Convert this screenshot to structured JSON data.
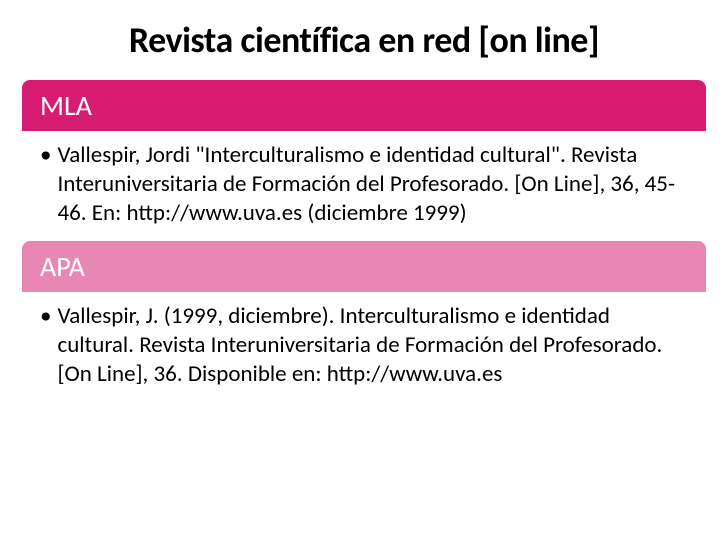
{
  "title": "Revista científica en red [on line]",
  "sections": [
    {
      "label": "MLA",
      "header_bg": "#d81b72",
      "content": "Vallespir, Jordi \"Interculturalismo e identidad cultural\". Revista Interuniversitaria de Formación del Profesorado. [On Line], 36, 45-46. En: http://www.uva.es (diciembre 1999)"
    },
    {
      "label": "APA",
      "header_bg": "#e887b4",
      "content": "Vallespir, J. (1999, diciembre). Interculturalismo e identidad cultural. Revista Interuniversitaria de Formación del Profesorado. [On Line], 36. Disponible en: http://www.uva.es"
    }
  ],
  "bullet_char": "•",
  "body_text_color": "#000000",
  "background_color": "#ffffff",
  "title_color": "#000000",
  "title_fontsize": 36,
  "header_fontsize": 28,
  "body_fontsize": 23
}
